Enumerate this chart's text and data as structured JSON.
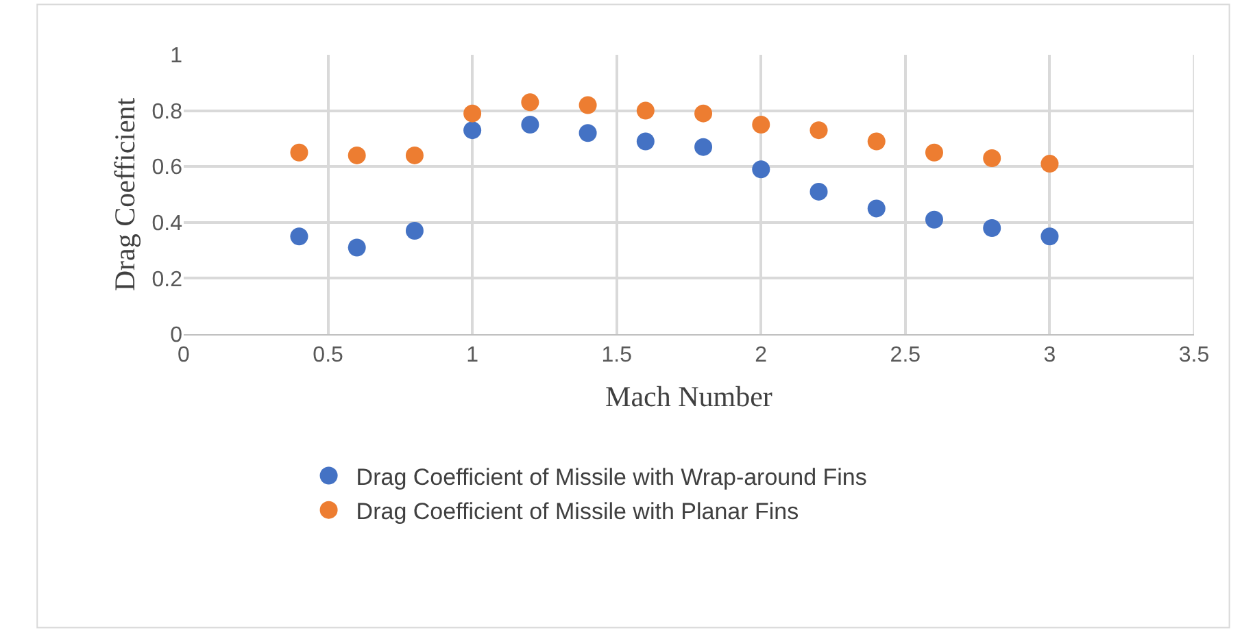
{
  "chart_data": {
    "type": "scatter",
    "xlabel": "Mach Number",
    "ylabel": "Drag Coefficient",
    "x": [
      0.4,
      0.6,
      0.8,
      1.0,
      1.2,
      1.4,
      1.6,
      1.8,
      2.0,
      2.2,
      2.4,
      2.6,
      2.8,
      3.0
    ],
    "series": [
      {
        "name": "Drag Coefficient of Missile with Wrap-around Fins",
        "color": "#4472c4",
        "values": [
          0.35,
          0.31,
          0.37,
          0.73,
          0.75,
          0.72,
          0.69,
          0.67,
          0.59,
          0.51,
          0.45,
          0.41,
          0.38,
          0.35
        ]
      },
      {
        "name": "Drag Coefficient of Missile with Planar Fins",
        "color": "#ed7d31",
        "values": [
          0.65,
          0.64,
          0.64,
          0.79,
          0.83,
          0.82,
          0.8,
          0.79,
          0.75,
          0.73,
          0.69,
          0.65,
          0.63,
          0.61
        ]
      }
    ],
    "xlim": [
      0,
      3.5
    ],
    "xticks": [
      0,
      0.5,
      1,
      1.5,
      2,
      2.5,
      3,
      3.5
    ],
    "ylim": [
      0,
      1
    ],
    "yticks": [
      0,
      0.2,
      0.4,
      0.6,
      0.8,
      1
    ],
    "grid": true,
    "legend": "bottom",
    "marker": "circle"
  }
}
